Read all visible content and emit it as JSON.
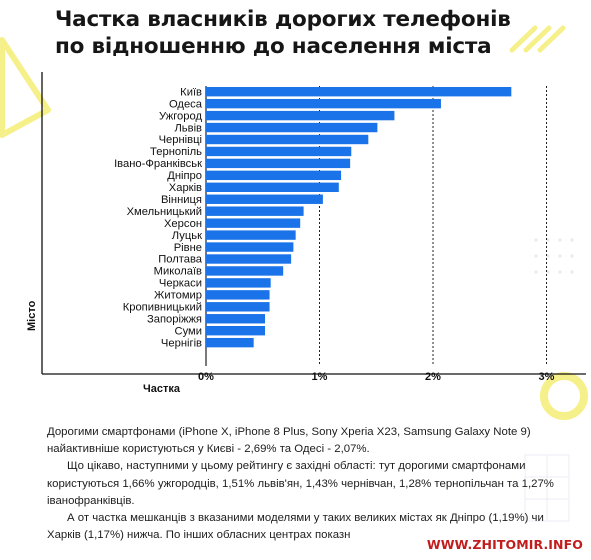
{
  "title_lines": [
    "Частка власників дорогих телефонів",
    "по відношенню до населення міста"
  ],
  "colors": {
    "bar": "#1a73e8",
    "accent_yellow": "#f5ee7a",
    "watermark": "#c21d1d"
  },
  "chart_data": {
    "type": "bar",
    "orientation": "horizontal",
    "categories": [
      "Київ",
      "Одеса",
      "Ужгород",
      "Львів",
      "Чернівці",
      "Тернопіль",
      "Івано-Франківськ",
      "Дніпро",
      "Харків",
      "Вінниця",
      "Хмельницький",
      "Херсон",
      "Луцьк",
      "Рівне",
      "Полтава",
      "Миколаїв",
      "Черкаси",
      "Житомир",
      "Кропивницький",
      "Запоріжжя",
      "Суми",
      "Чернігів"
    ],
    "values": [
      2.69,
      2.07,
      1.66,
      1.51,
      1.43,
      1.28,
      1.27,
      1.19,
      1.17,
      1.03,
      0.86,
      0.83,
      0.79,
      0.77,
      0.75,
      0.68,
      0.57,
      0.56,
      0.56,
      0.52,
      0.52,
      0.42
    ],
    "xlabel": "Частка",
    "ylabel": "Місто",
    "xlim": [
      0,
      3
    ],
    "ticks": [
      0,
      1,
      2,
      3
    ],
    "tick_labels": [
      "0%",
      "1%",
      "2%",
      "3%"
    ],
    "grid": "vertical dashed"
  },
  "paragraphs": [
    "Дорогими смартфонами (iPhone X, iPhone 8 Plus, Sony Xperia X23, Samsung Galaxy Note 9) найактивніше користуються у Києві - 2,69% та Одесі - 2,07%.",
    "Що цікаво, наступними у цьому рейтингу є західні області: тут дорогими смартфонами користуються 1,66% ужгородців, 1,51% львів'ян, 1,43% чернівчан, 1,28% тернопільчан та 1,27% івано­франківців.",
    "А от частка мешканців з вказаними моделями у таких великих містах як Дніпро (1,19%) чи Харків (1,17%) нижча. По інших обласних центрах показн"
  ],
  "watermark": "WWW.ZHITOMIR.INFO"
}
